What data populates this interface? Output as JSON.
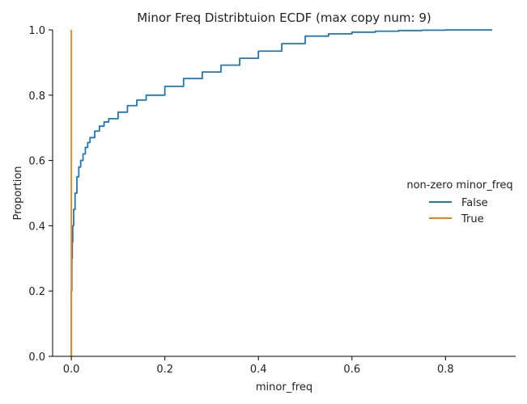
{
  "chart_data": {
    "type": "line",
    "subtype": "ecdf",
    "title": "Minor Freq Distribtuion ECDF (max copy num: 9)",
    "xlabel": "minor_freq",
    "ylabel": "Proportion",
    "xlim": [
      -0.04,
      0.95
    ],
    "ylim": [
      0,
      1.0
    ],
    "xticks": [
      0.0,
      0.2,
      0.4,
      0.6,
      0.8
    ],
    "xtick_labels": [
      "0.0",
      "0.2",
      "0.4",
      "0.6",
      "0.8"
    ],
    "yticks": [
      0.0,
      0.2,
      0.4,
      0.6,
      0.8,
      1.0
    ],
    "ytick_labels": [
      "0.0",
      "0.2",
      "0.4",
      "0.6",
      "0.8",
      "1.0"
    ],
    "grid": false,
    "legend": {
      "title": "non-zero minor_freq",
      "placement": "right",
      "entries": [
        "False",
        "True"
      ]
    },
    "series": [
      {
        "name": "False",
        "color": "#1f77b4",
        "x": [
          0.0,
          0.0,
          0.001,
          0.002,
          0.003,
          0.005,
          0.008,
          0.012,
          0.016,
          0.02,
          0.025,
          0.03,
          0.035,
          0.04,
          0.05,
          0.06,
          0.07,
          0.08,
          0.1,
          0.12,
          0.14,
          0.16,
          0.2,
          0.24,
          0.28,
          0.32,
          0.36,
          0.4,
          0.45,
          0.5,
          0.55,
          0.6,
          0.65,
          0.7,
          0.75,
          0.8,
          0.85,
          0.9
        ],
        "y": [
          0.0,
          0.2,
          0.3,
          0.35,
          0.4,
          0.45,
          0.5,
          0.55,
          0.58,
          0.6,
          0.62,
          0.64,
          0.655,
          0.67,
          0.69,
          0.705,
          0.718,
          0.728,
          0.748,
          0.768,
          0.785,
          0.8,
          0.827,
          0.851,
          0.871,
          0.892,
          0.913,
          0.935,
          0.958,
          0.981,
          0.988,
          0.993,
          0.996,
          0.998,
          0.999,
          1.0,
          1.0,
          1.0
        ]
      },
      {
        "name": "True",
        "color": "#ff7f0e",
        "x": [
          0.0,
          0.0
        ],
        "y": [
          0.0,
          1.0
        ]
      }
    ]
  }
}
